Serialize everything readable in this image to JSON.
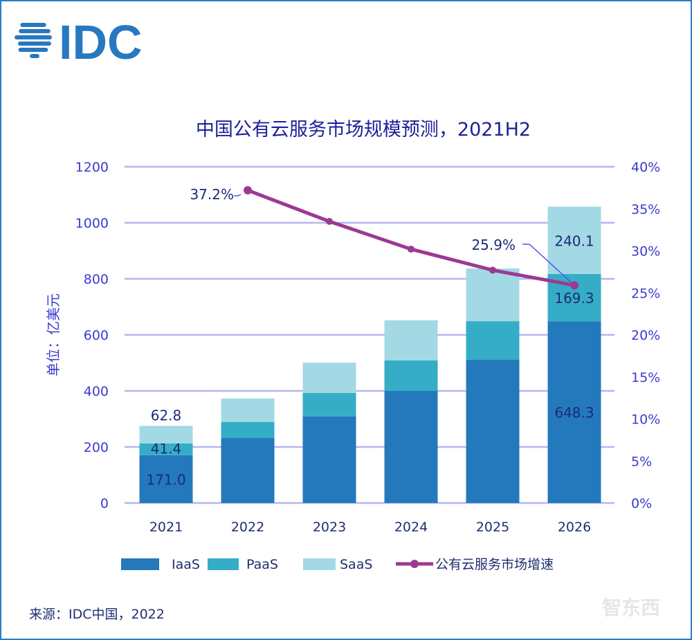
{
  "logo": {
    "text": "IDC",
    "color": "#2878c0"
  },
  "watermark": "智东西",
  "source": "来源：IDC中国，2022",
  "chart_data": {
    "type": "bar",
    "stacked": true,
    "title": "中国公有云服务市场规模预测，2021H2",
    "ylabel": "单位：亿美元",
    "xlabel": "",
    "categories": [
      "2021",
      "2022",
      "2023",
      "2024",
      "2025",
      "2026"
    ],
    "ylim": [
      0,
      1200
    ],
    "yticks": [
      "0",
      "200",
      "400",
      "600",
      "800",
      "1000",
      "1200"
    ],
    "y2lim": [
      0,
      40
    ],
    "y2ticks": [
      "0%",
      "5%",
      "10%",
      "15%",
      "20%",
      "25%",
      "30%",
      "35%",
      "40%"
    ],
    "grid": true,
    "legend_position": "bottom",
    "series": [
      {
        "name": "IaaS",
        "color": "#2479bd",
        "values": [
          171.0,
          232,
          309,
          400,
          511,
          648.3
        ],
        "labels": [
          "171.0",
          "",
          "",
          "",
          "",
          "648.3"
        ]
      },
      {
        "name": "PaaS",
        "color": "#35adc7",
        "values": [
          41.4,
          57,
          84,
          109,
          138,
          169.3
        ],
        "labels": [
          "41.4",
          "",
          "",
          "",
          "",
          "169.3"
        ]
      },
      {
        "name": "SaaS",
        "color": "#a3d9e4",
        "values": [
          62.8,
          84,
          108,
          143,
          188,
          240.1
        ],
        "labels": [
          "62.8",
          "",
          "",
          "",
          "",
          "240.1"
        ]
      }
    ],
    "line_series": {
      "name": "公有云服务市场增速",
      "color": "#9b3a93",
      "axis": "right",
      "x": [
        "2022",
        "2023",
        "2024",
        "2025",
        "2026"
      ],
      "values": [
        37.2,
        33.5,
        30.2,
        27.7,
        25.9
      ],
      "labels": [
        "37.2%",
        "",
        "",
        "",
        "25.9%"
      ]
    }
  }
}
